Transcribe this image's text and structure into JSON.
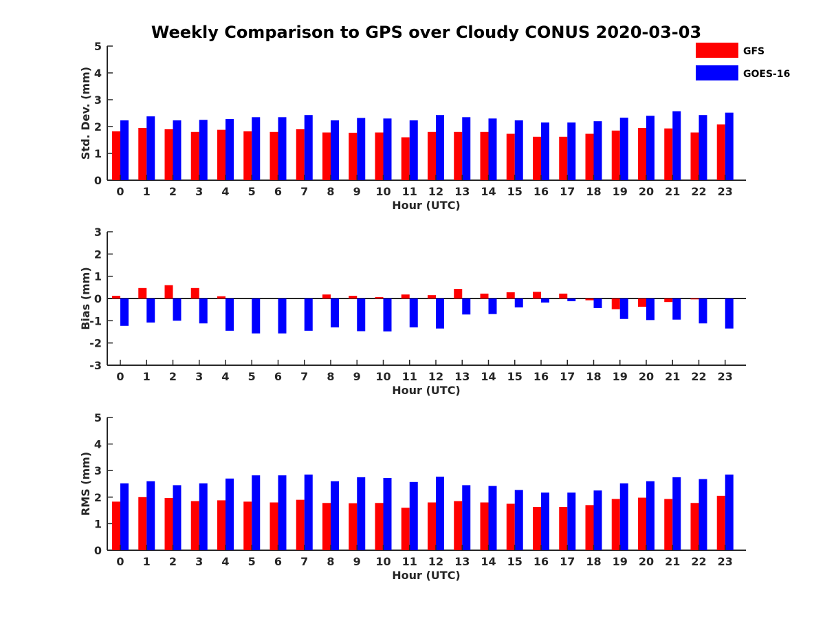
{
  "figure": {
    "title": "Weekly Comparison to GPS over Cloudy CONUS 2020-03-03"
  },
  "legend": {
    "placement": "top-right",
    "items": [
      {
        "label": "GFS",
        "color": "#ff0000"
      },
      {
        "label": "GOES-16",
        "color": "#0000ff"
      }
    ]
  },
  "chart_data": [
    {
      "type": "bar",
      "title": "",
      "xlabel": "Hour (UTC)",
      "ylabel": "Std. Dev. (mm)",
      "ylim": [
        0,
        5
      ],
      "yticks": [
        "0",
        "1",
        "2",
        "3",
        "4",
        "5"
      ],
      "grid": false,
      "categories": [
        "0",
        "1",
        "2",
        "3",
        "4",
        "5",
        "6",
        "7",
        "8",
        "9",
        "10",
        "11",
        "12",
        "13",
        "14",
        "15",
        "16",
        "17",
        "18",
        "19",
        "20",
        "21",
        "22",
        "23"
      ],
      "series": [
        {
          "name": "GFS",
          "color": "#ff0000",
          "values": [
            1.82,
            1.95,
            1.9,
            1.8,
            1.88,
            1.82,
            1.8,
            1.9,
            1.78,
            1.77,
            1.78,
            1.6,
            1.8,
            1.8,
            1.8,
            1.73,
            1.62,
            1.62,
            1.73,
            1.85,
            1.95,
            1.93,
            1.78,
            2.08
          ]
        },
        {
          "name": "GOES-16",
          "color": "#0000ff",
          "values": [
            2.23,
            2.38,
            2.23,
            2.25,
            2.28,
            2.35,
            2.35,
            2.43,
            2.23,
            2.32,
            2.3,
            2.23,
            2.43,
            2.35,
            2.3,
            2.23,
            2.15,
            2.15,
            2.2,
            2.33,
            2.4,
            2.57,
            2.43,
            2.52
          ]
        }
      ]
    },
    {
      "type": "bar",
      "title": "",
      "xlabel": "Hour (UTC)",
      "ylabel": "Bias (mm)",
      "ylim": [
        -3,
        3
      ],
      "yticks": [
        "-3",
        "-2",
        "-1",
        "0",
        "1",
        "2",
        "3"
      ],
      "grid": false,
      "zero_line": true,
      "categories": [
        "0",
        "1",
        "2",
        "3",
        "4",
        "5",
        "6",
        "7",
        "8",
        "9",
        "10",
        "11",
        "12",
        "13",
        "14",
        "15",
        "16",
        "17",
        "18",
        "19",
        "20",
        "21",
        "22",
        "23"
      ],
      "series": [
        {
          "name": "GFS",
          "color": "#ff0000",
          "values": [
            0.12,
            0.47,
            0.6,
            0.47,
            0.1,
            0.0,
            0.0,
            0.0,
            0.18,
            0.12,
            0.06,
            0.18,
            0.15,
            0.43,
            0.22,
            0.28,
            0.3,
            0.22,
            -0.08,
            -0.48,
            -0.37,
            -0.16,
            -0.04,
            0.0
          ]
        },
        {
          "name": "GOES-16",
          "color": "#0000ff",
          "values": [
            -1.23,
            -1.08,
            -1.0,
            -1.12,
            -1.45,
            -1.57,
            -1.57,
            -1.45,
            -1.3,
            -1.47,
            -1.48,
            -1.3,
            -1.35,
            -0.72,
            -0.7,
            -0.4,
            -0.18,
            -0.12,
            -0.43,
            -0.92,
            -0.97,
            -0.95,
            -1.12,
            -1.35
          ]
        }
      ]
    },
    {
      "type": "bar",
      "title": "",
      "xlabel": "Hour (UTC)",
      "ylabel": "RMS (mm)",
      "ylim": [
        0,
        5
      ],
      "yticks": [
        "0",
        "1",
        "2",
        "3",
        "4",
        "5"
      ],
      "grid": false,
      "categories": [
        "0",
        "1",
        "2",
        "3",
        "4",
        "5",
        "6",
        "7",
        "8",
        "9",
        "10",
        "11",
        "12",
        "13",
        "14",
        "15",
        "16",
        "17",
        "18",
        "19",
        "20",
        "21",
        "22",
        "23"
      ],
      "series": [
        {
          "name": "GFS",
          "color": "#ff0000",
          "values": [
            1.83,
            2.0,
            1.97,
            1.85,
            1.88,
            1.83,
            1.8,
            1.9,
            1.78,
            1.77,
            1.78,
            1.6,
            1.8,
            1.85,
            1.8,
            1.75,
            1.63,
            1.63,
            1.7,
            1.93,
            1.98,
            1.93,
            1.78,
            2.05
          ]
        },
        {
          "name": "GOES-16",
          "color": "#0000ff",
          "values": [
            2.52,
            2.6,
            2.45,
            2.52,
            2.7,
            2.82,
            2.82,
            2.85,
            2.6,
            2.75,
            2.72,
            2.57,
            2.77,
            2.45,
            2.42,
            2.27,
            2.17,
            2.17,
            2.25,
            2.52,
            2.6,
            2.75,
            2.68,
            2.85
          ]
        }
      ]
    }
  ]
}
